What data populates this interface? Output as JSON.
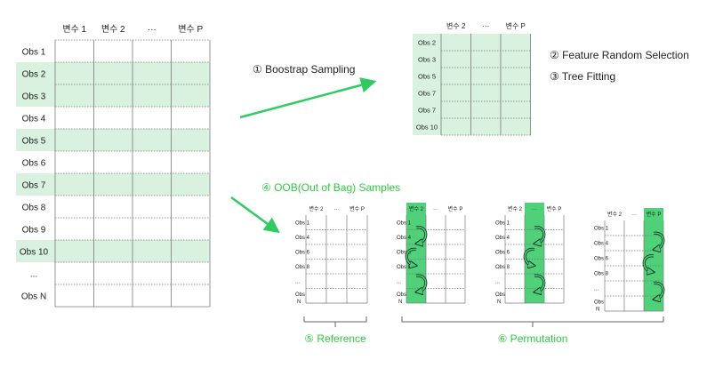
{
  "colors": {
    "row_highlight": "#d9f2df",
    "column_highlight": "#4fd17a",
    "arrow_green": "#2ecc60",
    "label_green": "#2ecc40",
    "grid_line": "#7a7a7a",
    "text": "#222222"
  },
  "main_table": {
    "headers": [
      "변수 1",
      "변수 2",
      "···",
      "변수 P"
    ],
    "rows": [
      {
        "label": "Obs 1",
        "sampled": false
      },
      {
        "label": "Obs 2",
        "sampled": true
      },
      {
        "label": "Obs 3",
        "sampled": true
      },
      {
        "label": "Obs 4",
        "sampled": false
      },
      {
        "label": "Obs 5",
        "sampled": true
      },
      {
        "label": "Obs 6",
        "sampled": false
      },
      {
        "label": "Obs 7",
        "sampled": true
      },
      {
        "label": "Obs 8",
        "sampled": false
      },
      {
        "label": "Obs 9",
        "sampled": false
      },
      {
        "label": "Obs 10",
        "sampled": true
      },
      {
        "label": "...",
        "sampled": false
      },
      {
        "label": "Obs N",
        "sampled": false
      }
    ]
  },
  "bootstrap_table": {
    "headers": [
      "변수 2",
      "···",
      "변수 P"
    ],
    "rows": [
      "Obs 2",
      "Obs 3",
      "Obs 5",
      "Obs 7",
      "Obs 7",
      "Obs 10"
    ]
  },
  "steps": {
    "bootstrap": "① Boostrap Sampling",
    "feature_selection": "② Feature Random Selection",
    "tree_fitting": "③ Tree Fitting",
    "oob": "④ OOB(Out of Bag) Samples",
    "reference": "⑤ Reference",
    "permutation": "⑥ Permutation"
  },
  "oob_tables": [
    {
      "headers": [
        "변수 2",
        "···",
        "변수 P"
      ],
      "rows": [
        "Obs 1",
        "Obs 4",
        "Obs 6",
        "Obs 8",
        "...",
        "Obs N"
      ],
      "permuted_column": null
    },
    {
      "headers": [
        "변수 2",
        "···",
        "변수 P"
      ],
      "rows": [
        "Obs 1",
        "Obs 4",
        "Obs 6",
        "Obs 8",
        "...",
        "Obs N"
      ],
      "permuted_column": 0
    },
    {
      "headers": [
        "변수 2",
        "···",
        "변수 P"
      ],
      "rows": [
        "Obs 1",
        "Obs 4",
        "Obs 6",
        "Obs 8",
        "...",
        "Obs N"
      ],
      "permuted_column": 1
    },
    {
      "headers": [
        "변수 2",
        "···",
        "변수 P"
      ],
      "rows": [
        "Obs 1",
        "Obs 4",
        "Obs 6",
        "Obs 8",
        "...",
        "Obs N"
      ],
      "permuted_column": 2
    }
  ]
}
